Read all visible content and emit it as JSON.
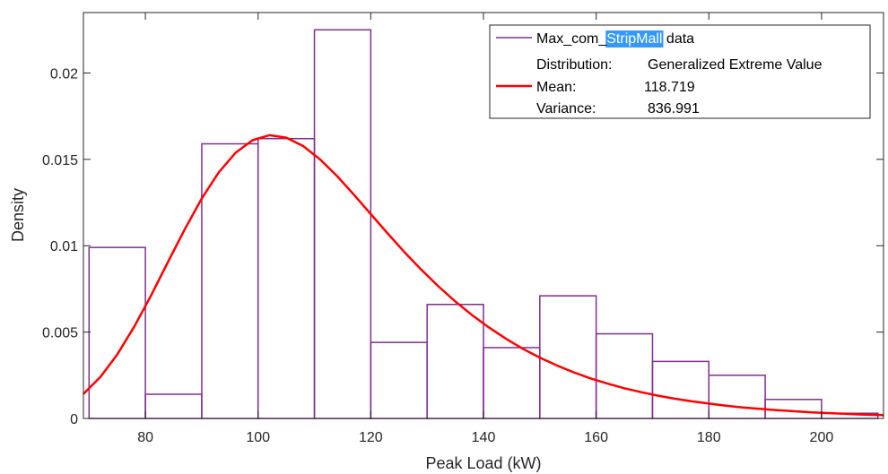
{
  "chart_data": {
    "type": "bar",
    "xlabel": "Peak Load (kW)",
    "ylabel": "Density",
    "xlim": [
      69,
      211
    ],
    "ylim": [
      0,
      0.0235
    ],
    "xticks": [
      80,
      100,
      120,
      140,
      160,
      180,
      200
    ],
    "yticks": [
      0,
      0.005,
      0.01,
      0.015,
      0.02
    ],
    "ytick_labels": [
      "0",
      "0.005",
      "0.01",
      "0.015",
      "0.02"
    ],
    "histogram": {
      "name": "Max_com_StripMall data",
      "color": "#7e2f8e",
      "bins": [
        {
          "x0": 70,
          "x1": 80,
          "density": 0.0099
        },
        {
          "x0": 80,
          "x1": 90,
          "density": 0.0014
        },
        {
          "x0": 90,
          "x1": 100,
          "density": 0.0159
        },
        {
          "x0": 100,
          "x1": 110,
          "density": 0.0162
        },
        {
          "x0": 110,
          "x1": 120,
          "density": 0.0225
        },
        {
          "x0": 120,
          "x1": 130,
          "density": 0.0044
        },
        {
          "x0": 130,
          "x1": 140,
          "density": 0.0066
        },
        {
          "x0": 140,
          "x1": 150,
          "density": 0.0041
        },
        {
          "x0": 150,
          "x1": 160,
          "density": 0.0071
        },
        {
          "x0": 160,
          "x1": 170,
          "density": 0.0049
        },
        {
          "x0": 170,
          "x1": 180,
          "density": 0.0033
        },
        {
          "x0": 180,
          "x1": 190,
          "density": 0.0025
        },
        {
          "x0": 190,
          "x1": 200,
          "density": 0.0011
        },
        {
          "x0": 200,
          "x1": 210,
          "density": 0.0003
        }
      ]
    },
    "fit_curve": {
      "color": "#ff0000",
      "x": [
        69,
        72,
        75,
        78,
        81,
        84,
        87,
        90,
        93,
        96,
        99,
        102,
        105,
        108,
        111,
        114,
        117,
        120,
        123,
        126,
        129,
        132,
        135,
        138,
        141,
        144,
        147,
        150,
        153,
        156,
        159,
        162,
        165,
        168,
        171,
        174,
        177,
        180,
        183,
        186,
        189,
        192,
        195,
        198,
        201,
        204,
        207,
        210,
        211
      ],
      "y": [
        0.00142,
        0.00239,
        0.0037,
        0.0053,
        0.00712,
        0.00905,
        0.01096,
        0.01273,
        0.01424,
        0.01538,
        0.01611,
        0.0164,
        0.01626,
        0.01577,
        0.015,
        0.01404,
        0.01296,
        0.01183,
        0.01071,
        0.00962,
        0.0086,
        0.00765,
        0.00677,
        0.00598,
        0.00526,
        0.00461,
        0.00403,
        0.00352,
        0.00307,
        0.00267,
        0.00232,
        0.00202,
        0.00175,
        0.00152,
        0.00132,
        0.00114,
        0.00099,
        0.00086,
        0.00074,
        0.00064,
        0.00056,
        0.00048,
        0.00042,
        0.00036,
        0.00031,
        0.00027,
        0.00023,
        0.0002,
        0.00019
      ]
    },
    "legend": {
      "placement": "top-right",
      "series_label_prefix": "Max_com_",
      "series_label_highlight": "StripMall",
      "series_label_suffix": " data",
      "distribution_key": "Distribution:",
      "distribution_value": "Generalized Extreme Value",
      "mean_key": "Mean:",
      "mean_value": "118.719",
      "variance_key": "Variance:",
      "variance_value": "836.991",
      "highlight_color": "#3399ff"
    },
    "grid": false
  }
}
